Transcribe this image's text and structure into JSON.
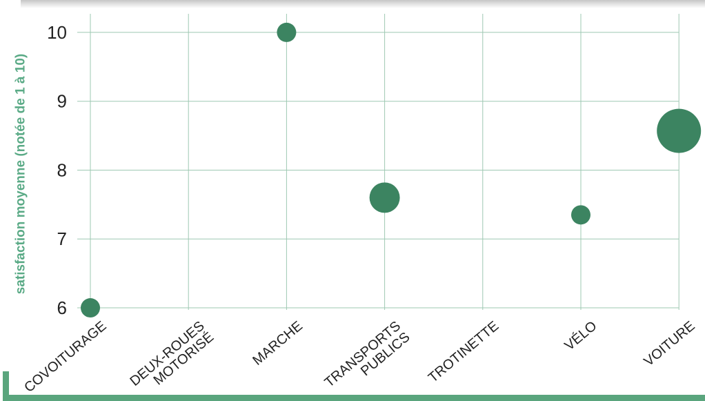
{
  "chart_data": {
    "type": "scatter",
    "title": "",
    "xlabel": "",
    "ylabel": "satisfaction moyenne (notée de 1 à 10)",
    "categories": [
      [
        "COVOITURAGE"
      ],
      [
        "DEUX-ROUES",
        "MOTORISÉ"
      ],
      [
        "MARCHE"
      ],
      [
        "TRANSPORTS",
        "PUBLICS"
      ],
      [
        "TROTINETTE"
      ],
      [
        "VÉLO"
      ],
      [
        "VOITURE"
      ]
    ],
    "points": [
      {
        "category": 0,
        "y": 6.0,
        "size": "small"
      },
      {
        "category": 2,
        "y": 10.0,
        "size": "small"
      },
      {
        "category": 3,
        "y": 7.6,
        "size": "medium"
      },
      {
        "category": 5,
        "y": 7.35,
        "size": "small"
      },
      {
        "category": 6,
        "y": 8.57,
        "size": "large"
      }
    ],
    "yticks": [
      6,
      7,
      8,
      9,
      10
    ],
    "ylim": [
      5.97,
      10.27
    ],
    "grid": true,
    "legend": "none",
    "colors": {
      "point": "#3c8461",
      "grid": "#9ec8b2",
      "axis_title": "#5aaa86",
      "frame": "#5aa57d"
    }
  }
}
